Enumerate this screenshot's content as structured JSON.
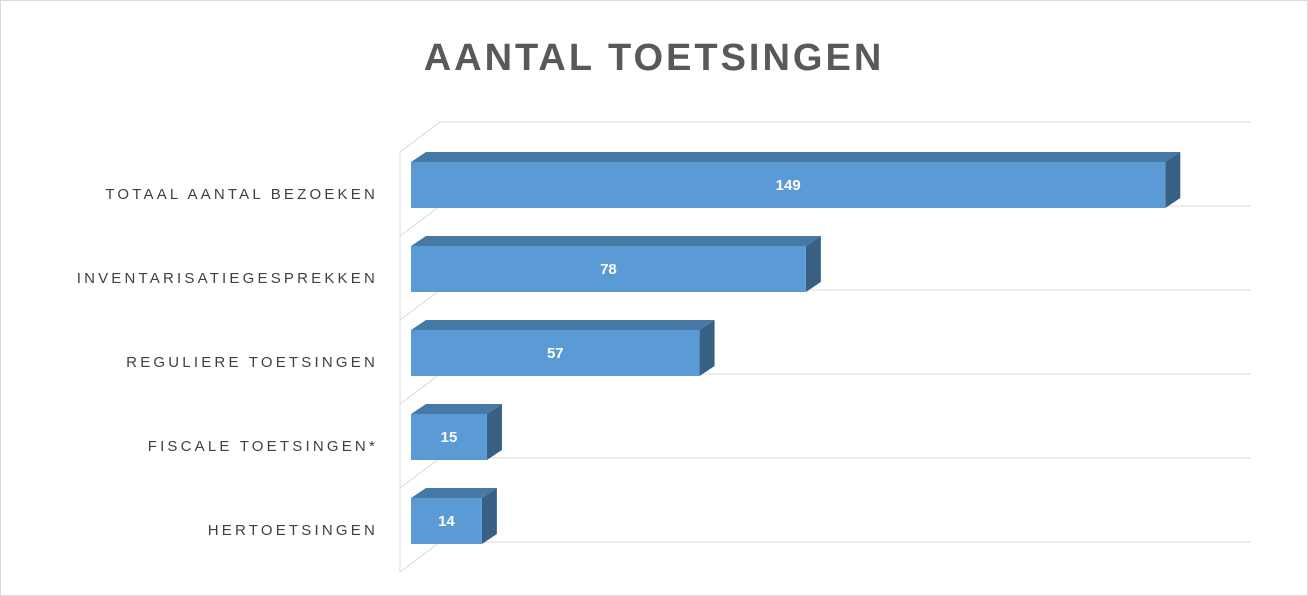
{
  "chart_data": {
    "type": "bar3d",
    "orientation": "horizontal",
    "title": "AANTAL TOETSINGEN",
    "categories": [
      "TOTAAL AANTAL BEZOEKEN",
      "INVENTARISATIEGESPREKKEN",
      "REGULIERE TOETSINGEN",
      "FISCALE TOETSINGEN*",
      "HERTOETSINGEN"
    ],
    "values": [
      149,
      78,
      57,
      15,
      14
    ],
    "color": "#5b9bd5",
    "xlim": [
      0,
      160
    ]
  }
}
